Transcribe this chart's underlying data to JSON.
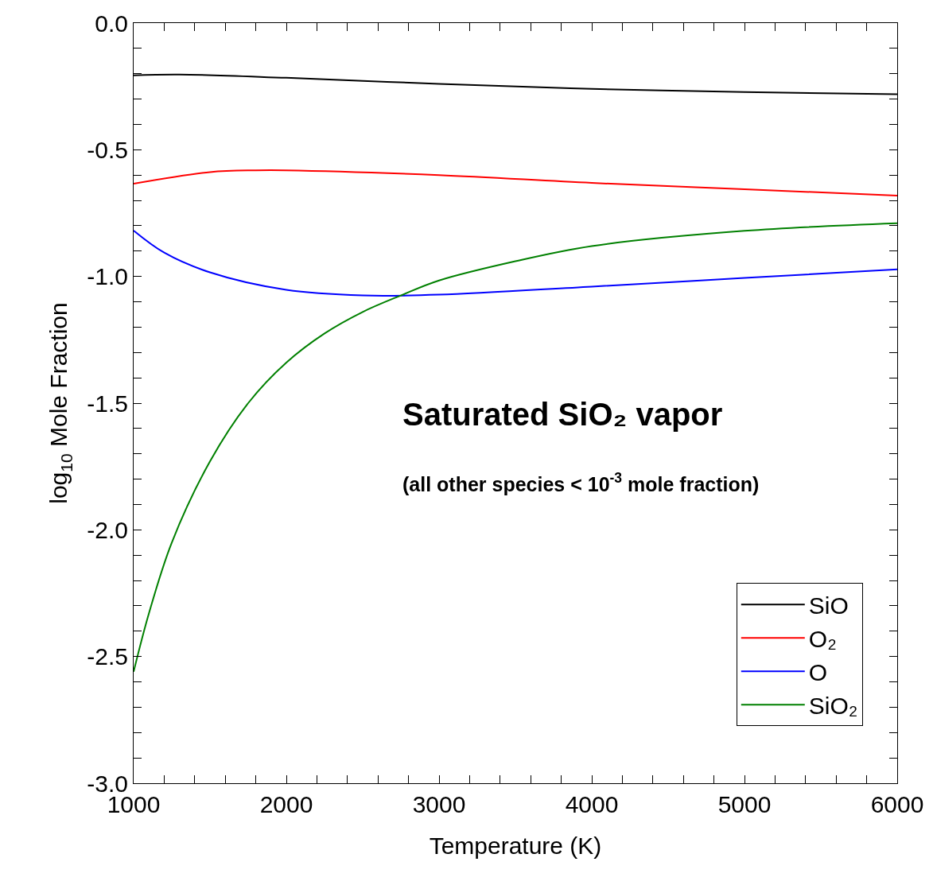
{
  "chart_data": {
    "type": "line",
    "xlabel": "Temperature (K)",
    "ylabel": "log$_{10}$ Mole Fraction",
    "annotations": [
      "Saturated SiO₂ vapor",
      "(all other species < 10$^{-3}$ mole fraction)"
    ],
    "series": [
      {
        "name": "SiO",
        "color": "#000000",
        "x": [
          1000,
          1300,
          2000,
          3000,
          4000,
          5000,
          6000
        ],
        "values": [
          -0.206,
          -0.203,
          -0.216,
          -0.24,
          -0.26,
          -0.272,
          -0.281
        ]
      },
      {
        "name": "O₂",
        "color": "#ff0000",
        "x": [
          1000,
          1500,
          1800,
          2000,
          3000,
          4000,
          5000,
          6000
        ],
        "values": [
          -0.634,
          -0.588,
          -0.581,
          -0.581,
          -0.6,
          -0.631,
          -0.656,
          -0.681
        ]
      },
      {
        "name": "O",
        "color": "#0000ff",
        "x": [
          1000,
          1200,
          1500,
          2000,
          2500,
          3000,
          4000,
          5000,
          6000
        ],
        "values": [
          -0.819,
          -0.906,
          -0.984,
          -1.053,
          -1.075,
          -1.072,
          -1.04,
          -1.006,
          -0.972
        ]
      },
      {
        "name": "SiO₂",
        "color": "#008000",
        "x": [
          1000,
          1100,
          1250,
          1500,
          1750,
          2000,
          2250,
          2500,
          2750,
          3000,
          3500,
          4000,
          5000,
          6000
        ],
        "values": [
          -2.56,
          -2.33,
          -2.05,
          -1.73,
          -1.5,
          -1.34,
          -1.225,
          -1.14,
          -1.075,
          -1.016,
          -0.94,
          -0.88,
          -0.82,
          -0.79
        ]
      }
    ],
    "xlim": [
      1000,
      6000
    ],
    "ylim": [
      -3.0,
      0.0
    ],
    "xticks": [
      1000,
      {
        "value": 1200,
        "label": null
      },
      {
        "value": 1400,
        "label": null
      },
      {
        "value": 1600,
        "label": null
      },
      {
        "value": 1800,
        "label": null
      },
      2000,
      {
        "value": 2200,
        "label": null
      },
      {
        "value": 2400,
        "label": null
      },
      {
        "value": 2600,
        "label": null
      },
      {
        "value": 2800,
        "label": null
      },
      3000,
      {
        "value": 3200,
        "label": null
      },
      {
        "value": 3400,
        "label": null
      },
      {
        "value": 3600,
        "label": null
      },
      {
        "value": 3800,
        "label": null
      },
      4000,
      {
        "value": 4200,
        "label": null
      },
      {
        "value": 4400,
        "label": null
      },
      {
        "value": 4600,
        "label": null
      },
      {
        "value": 4800,
        "label": null
      },
      5000,
      {
        "value": 5200,
        "label": null
      },
      {
        "value": 5400,
        "label": null
      },
      {
        "value": 5600,
        "label": null
      },
      {
        "value": 5800,
        "label": null
      },
      6000
    ],
    "yticks": [
      {
        "value": -3.0,
        "label": "-3.0"
      },
      {
        "value": -2.9,
        "label": null
      },
      {
        "value": -2.8,
        "label": null
      },
      {
        "value": -2.7,
        "label": null
      },
      {
        "value": -2.6,
        "label": null
      },
      -2.5,
      {
        "value": -2.4,
        "label": null
      },
      {
        "value": -2.3,
        "label": null
      },
      {
        "value": -2.2,
        "label": null
      },
      {
        "value": -2.1,
        "label": null
      },
      {
        "value": -2.0,
        "label": "-2.0"
      },
      {
        "value": -1.9,
        "label": null
      },
      {
        "value": -1.8,
        "label": null
      },
      {
        "value": -1.7,
        "label": null
      },
      {
        "value": -1.6,
        "label": null
      },
      -1.5,
      {
        "value": -1.4,
        "label": null
      },
      {
        "value": -1.3,
        "label": null
      },
      {
        "value": -1.2,
        "label": null
      },
      {
        "value": -1.1,
        "label": null
      },
      {
        "value": -1.0,
        "label": "-1.0"
      },
      {
        "value": -0.9,
        "label": null
      },
      {
        "value": -0.8,
        "label": null
      },
      {
        "value": -0.7,
        "label": null
      },
      {
        "value": -0.6,
        "label": null
      },
      -0.5,
      {
        "value": -0.4,
        "label": null
      },
      {
        "value": -0.3,
        "label": null
      },
      {
        "value": -0.2,
        "label": null
      },
      {
        "value": -0.1,
        "label": null
      },
      {
        "value": 0.0,
        "label": "0.0"
      }
    ],
    "legend": "bottom right",
    "marker": "none",
    "line_style": "solid"
  }
}
